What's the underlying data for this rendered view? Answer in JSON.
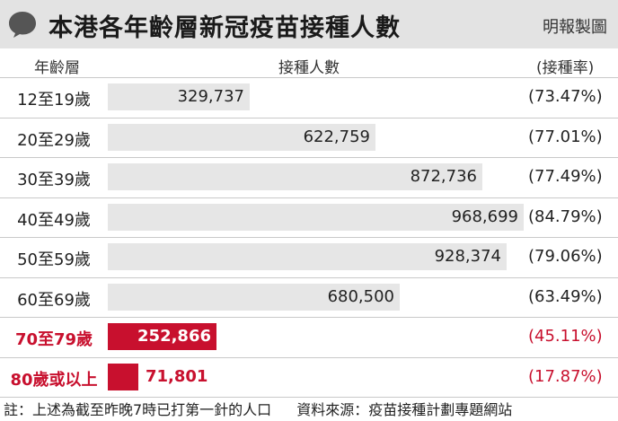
{
  "header": {
    "title": "本港各年齡層新冠疫苗接種人數",
    "credit": "明報製圖"
  },
  "columns": {
    "age": "年齡層",
    "count": "接種人數",
    "rate": "(接種率)"
  },
  "colors": {
    "highlight": "#c8102e",
    "bar": "#e6e6e6",
    "title_bg": "#e3e3e3"
  },
  "chart_data": {
    "type": "bar",
    "orientation": "horizontal",
    "title": "本港各年齡層新冠疫苗接種人數",
    "xlabel": "接種人數",
    "ylabel": "年齡層",
    "categories": [
      "12至19歲",
      "20至29歲",
      "30至39歲",
      "40至49歲",
      "50至59歲",
      "60至69歲",
      "70至79歲",
      "80歲或以上"
    ],
    "values": [
      329737,
      622759,
      872736,
      968699,
      928374,
      680500,
      252866,
      71801
    ],
    "value_labels": [
      "329,737",
      "622,759",
      "872,736",
      "968,699",
      "928,374",
      "680,500",
      "252,866",
      "71,801"
    ],
    "rates": [
      "(73.47%)",
      "(77.01%)",
      "(77.49%)",
      "(84.79%)",
      "(79.06%)",
      "(63.49%)",
      "(45.11%)",
      "(17.87%)"
    ],
    "highlighted": [
      false,
      false,
      false,
      false,
      false,
      false,
      true,
      true
    ],
    "xlim": [
      0,
      968699
    ],
    "grid": false,
    "legend": "none"
  },
  "footer": {
    "note": "註：上述為截至昨晚7時已打第一針的人口",
    "source": "資料來源：疫苗接種計劃專題網站"
  }
}
